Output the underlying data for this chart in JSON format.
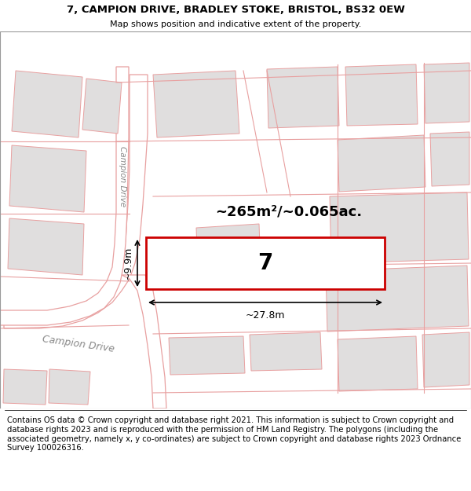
{
  "title_line1": "7, CAMPION DRIVE, BRADLEY STOKE, BRISTOL, BS32 0EW",
  "title_line2": "Map shows position and indicative extent of the property.",
  "footer_text": "Contains OS data © Crown copyright and database right 2021. This information is subject to Crown copyright and database rights 2023 and is reproduced with the permission of HM Land Registry. The polygons (including the associated geometry, namely x, y co-ordinates) are subject to Crown copyright and database rights 2023 Ordnance Survey 100026316.",
  "map_bg": "#f0eded",
  "road_color": "#e8a0a0",
  "road_color2": "#c8b0b0",
  "plot_fill": "#ffffff",
  "plot_border": "#cc0000",
  "plot_label": "7",
  "area_text": "~265m²/~0.065ac.",
  "dim_width": "~27.8m",
  "dim_height": "~9.9m",
  "title_fontsize": 9.5,
  "footer_fontsize": 7.2
}
